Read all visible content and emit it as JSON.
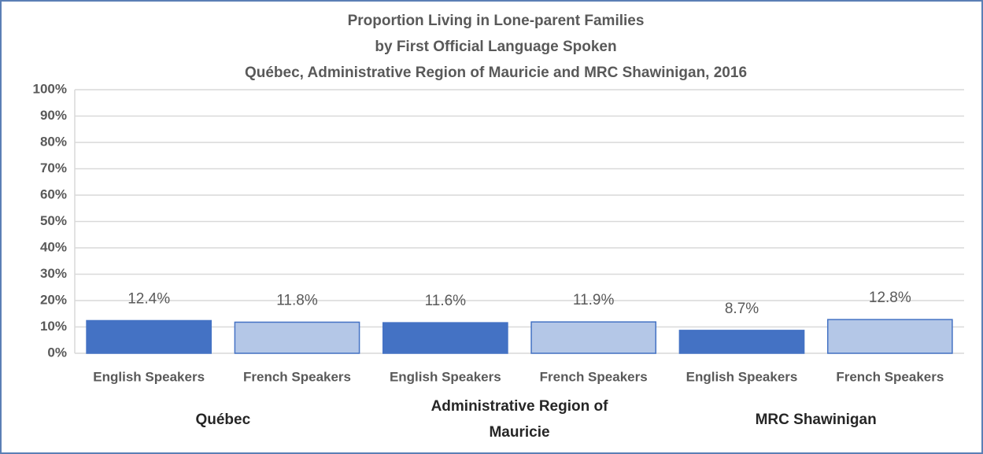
{
  "chart_data": {
    "type": "bar",
    "title": [
      "Proportion  Living in Lone-parent Families",
      "by First Official Language Spoken",
      "Québec, Administrative Region of Mauricie and MRC Shawinigan, 2016"
    ],
    "categories": [
      "English Speakers",
      "French Speakers",
      "English Speakers",
      "French Speakers",
      "English Speakers",
      "French Speakers"
    ],
    "groups": [
      "Québec",
      "Administrative Region of Mauricie",
      "MRC Shawinigan"
    ],
    "values": [
      12.4,
      11.8,
      11.6,
      11.9,
      8.7,
      12.8
    ],
    "value_labels": [
      "12.4%",
      "11.8%",
      "11.6%",
      "11.9%",
      "8.7%",
      "12.8%"
    ],
    "colors": [
      "#4472c4",
      "#b4c7e7",
      "#4472c4",
      "#b4c7e7",
      "#4472c4",
      "#b4c7e7"
    ],
    "ylim": [
      0,
      100
    ],
    "yticks": [
      {
        "value": 0,
        "label": "0%"
      },
      {
        "value": 10,
        "label": "10%"
      },
      {
        "value": 20,
        "label": "20%"
      },
      {
        "value": 30,
        "label": "30%"
      },
      {
        "value": 40,
        "label": "40%"
      },
      {
        "value": 50,
        "label": "50%"
      },
      {
        "value": 60,
        "label": "60%"
      },
      {
        "value": 70,
        "label": "70%"
      },
      {
        "value": 80,
        "label": "80%"
      },
      {
        "value": 90,
        "label": "90%"
      },
      {
        "value": 100,
        "label": "100%"
      }
    ],
    "grid": true
  }
}
